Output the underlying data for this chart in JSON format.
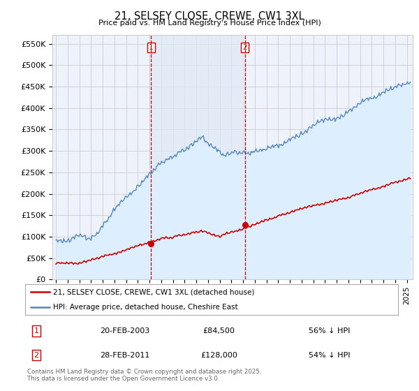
{
  "title": "21, SELSEY CLOSE, CREWE, CW1 3XL",
  "subtitle": "Price paid vs. HM Land Registry's House Price Index (HPI)",
  "ylabel_ticks": [
    "£0",
    "£50K",
    "£100K",
    "£150K",
    "£200K",
    "£250K",
    "£300K",
    "£350K",
    "£400K",
    "£450K",
    "£500K",
    "£550K"
  ],
  "ytick_values": [
    0,
    50000,
    100000,
    150000,
    200000,
    250000,
    300000,
    350000,
    400000,
    450000,
    500000,
    550000
  ],
  "ylim": [
    0,
    570000
  ],
  "xlim_start": 1994.7,
  "xlim_end": 2025.5,
  "marker1_x": 2003.13,
  "marker1_y": 84500,
  "marker2_x": 2011.16,
  "marker2_y": 128000,
  "legend_entries": [
    "21, SELSEY CLOSE, CREWE, CW1 3XL (detached house)",
    "HPI: Average price, detached house, Cheshire East"
  ],
  "table_rows": [
    {
      "num": "1",
      "date": "20-FEB-2003",
      "price": "£84,500",
      "pct": "56% ↓ HPI"
    },
    {
      "num": "2",
      "date": "28-FEB-2011",
      "price": "£128,000",
      "pct": "54% ↓ HPI"
    }
  ],
  "footnote": "Contains HM Land Registry data © Crown copyright and database right 2025.\nThis data is licensed under the Open Government Licence v3.0.",
  "line_red_color": "#cc0000",
  "line_blue_color": "#5588bb",
  "line_blue_fill": "#ddeeff",
  "vline_color": "#cc0000",
  "grid_color": "#cccccc",
  "bg_color": "#ffffff",
  "plot_bg_color": "#eef3fb",
  "shading_color": "#dde8f5"
}
